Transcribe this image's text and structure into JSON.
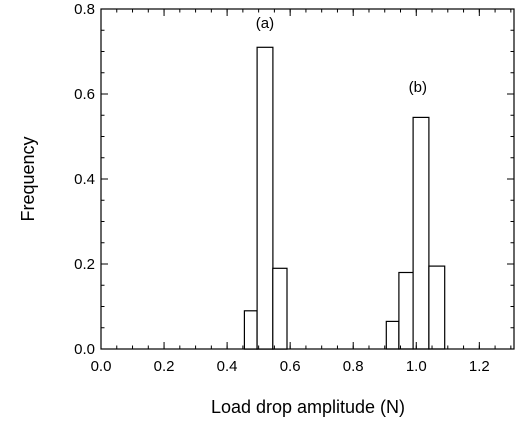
{
  "chart_data": {
    "type": "bar",
    "title": "",
    "xlabel": "Load drop amplitude (N)",
    "ylabel": "Frequency",
    "xlim": [
      0.0,
      1.31
    ],
    "ylim": [
      0.0,
      0.8
    ],
    "x_ticks": [
      0.0,
      0.2,
      0.4,
      0.6,
      0.8,
      1.0,
      1.2
    ],
    "x_tick_labels": [
      "0.0",
      "0.2",
      "0.4",
      "0.6",
      "0.8",
      "1.0",
      "1.2"
    ],
    "y_ticks": [
      0.0,
      0.2,
      0.4,
      0.6,
      0.8
    ],
    "y_tick_labels": [
      "0.0",
      "0.2",
      "0.4",
      "0.6",
      "0.8"
    ],
    "grid": false,
    "legend": "none",
    "series": [
      {
        "bins": [
          [
            0.455,
            0.495
          ],
          [
            0.495,
            0.545
          ],
          [
            0.545,
            0.59
          ]
        ],
        "values": [
          0.09,
          0.71,
          0.19
        ]
      },
      {
        "bins": [
          [
            0.905,
            0.945
          ],
          [
            0.945,
            0.99
          ],
          [
            0.99,
            1.04
          ],
          [
            1.04,
            1.09
          ]
        ],
        "values": [
          0.065,
          0.18,
          0.545,
          0.195
        ]
      }
    ],
    "annotations": [
      {
        "text": "(a)",
        "x": 0.52,
        "y": 0.755
      },
      {
        "text": "(b)",
        "x": 1.005,
        "y": 0.605
      }
    ]
  }
}
